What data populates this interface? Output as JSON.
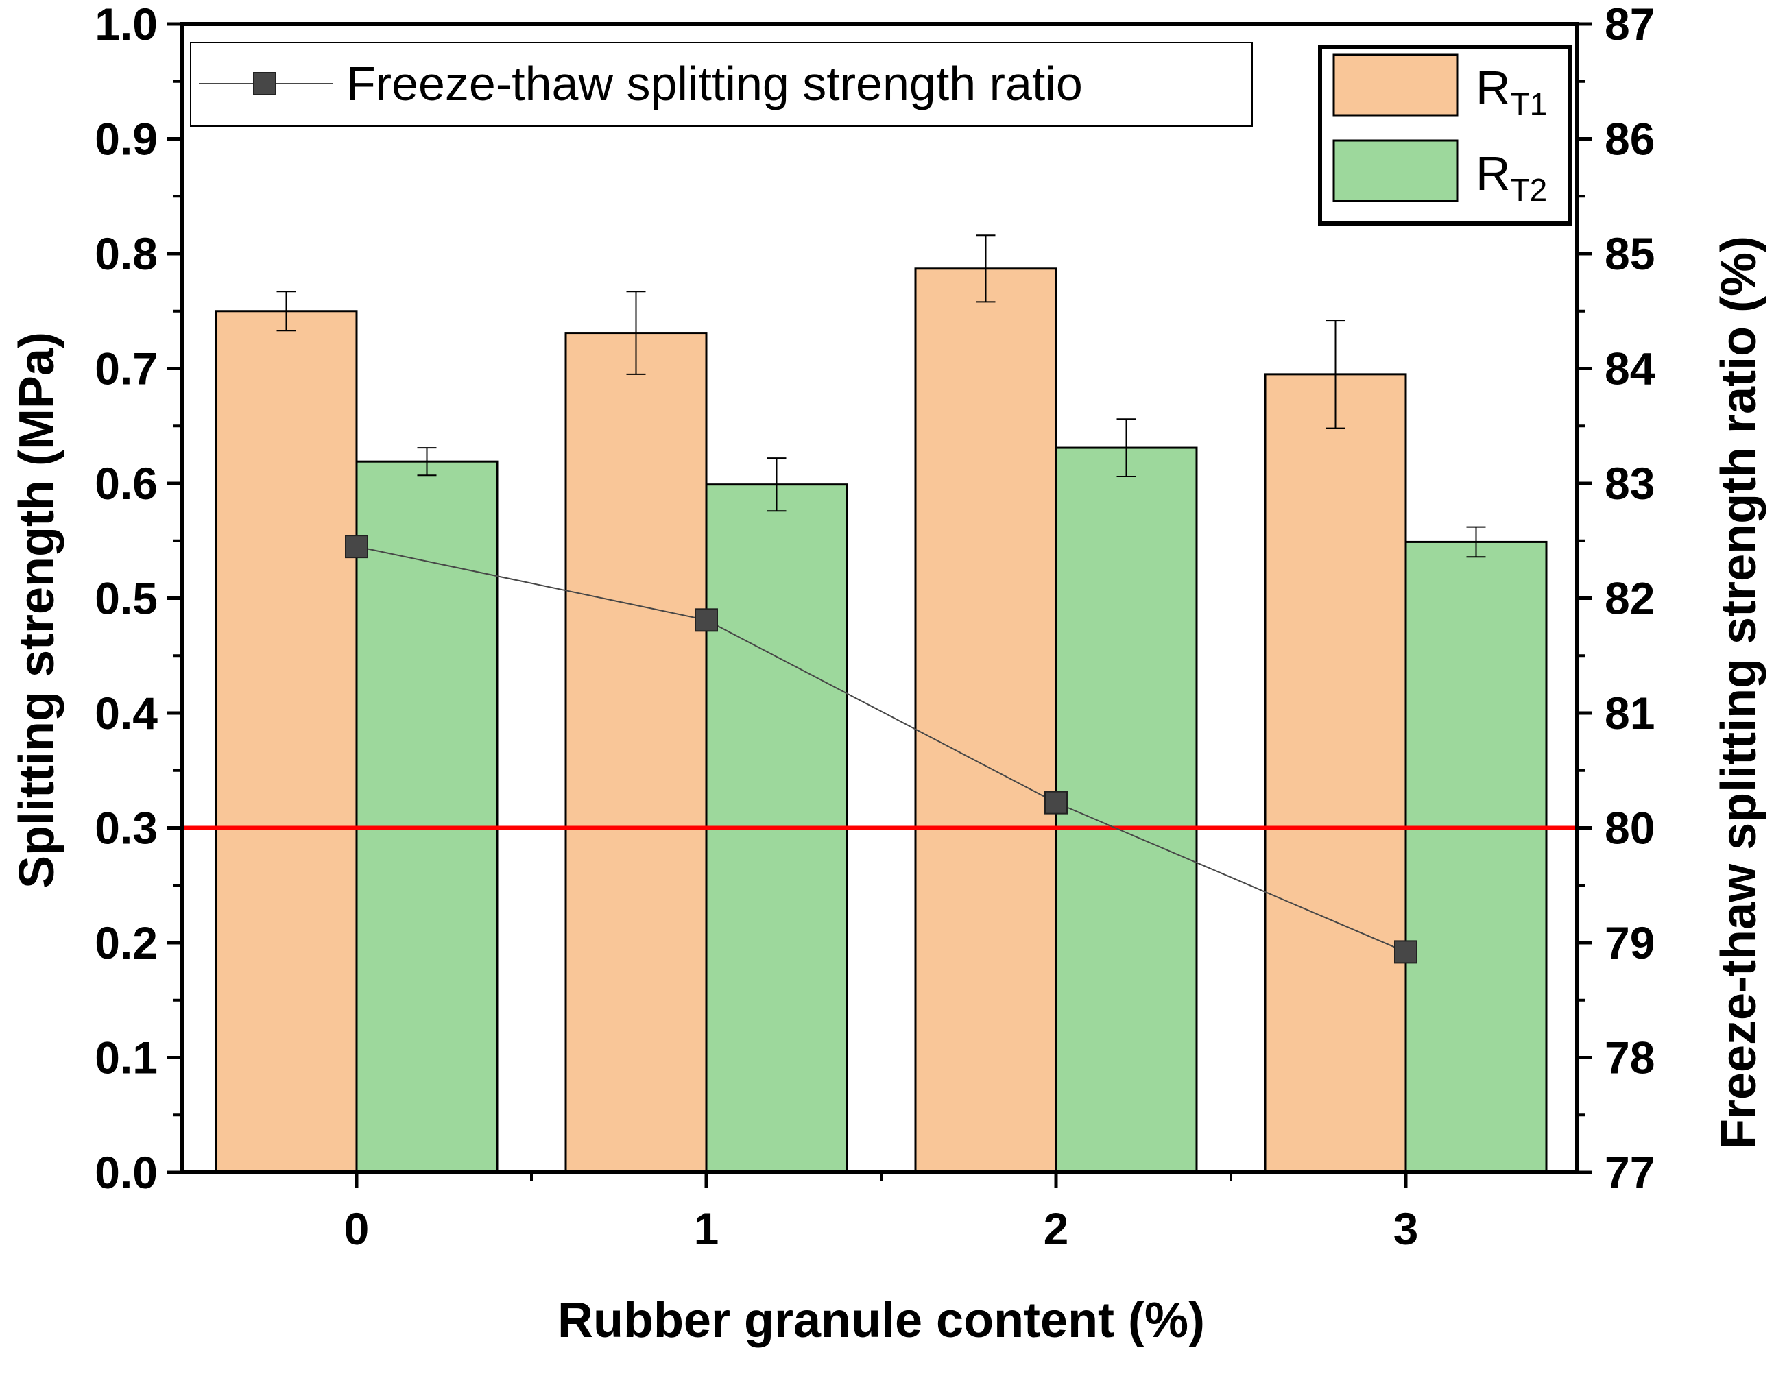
{
  "chart_data": {
    "type": "bar",
    "categories": [
      "0",
      "1",
      "2",
      "3"
    ],
    "xlabel": "Rubber granule content (%)",
    "ylabel": "Splitting strength (MPa)",
    "ylim": [
      0.0,
      1.0
    ],
    "yticks": [
      "0.0",
      "0.1",
      "0.2",
      "0.3",
      "0.4",
      "0.5",
      "0.6",
      "0.7",
      "0.8",
      "0.9",
      "1.0"
    ],
    "y2label": "Freeze-thaw splitting strength ratio (%)",
    "y2lim": [
      77,
      87
    ],
    "y2ticks": [
      "77",
      "78",
      "79",
      "80",
      "81",
      "82",
      "83",
      "84",
      "85",
      "86",
      "87"
    ],
    "series": [
      {
        "name": "R",
        "name_sub": "T1",
        "kind": "bar",
        "axis": "left",
        "color": "#f9c698",
        "values": [
          0.75,
          0.731,
          0.787,
          0.695
        ],
        "errors": [
          0.017,
          0.036,
          0.029,
          0.047
        ]
      },
      {
        "name": "R",
        "name_sub": "T2",
        "kind": "bar",
        "axis": "left",
        "color": "#9dd89c",
        "values": [
          0.619,
          0.599,
          0.631,
          0.549
        ],
        "errors": [
          0.012,
          0.023,
          0.025,
          0.013
        ]
      },
      {
        "name": "Freeze-thaw splitting strength ratio",
        "kind": "line",
        "axis": "right",
        "color": "#474747",
        "values": [
          82.45,
          81.81,
          80.22,
          78.92
        ]
      }
    ],
    "reference_line": {
      "axis": "left",
      "value": 0.3,
      "color": "#ff0000"
    },
    "grid": false,
    "legend": [
      "top-left",
      "top-right"
    ]
  }
}
